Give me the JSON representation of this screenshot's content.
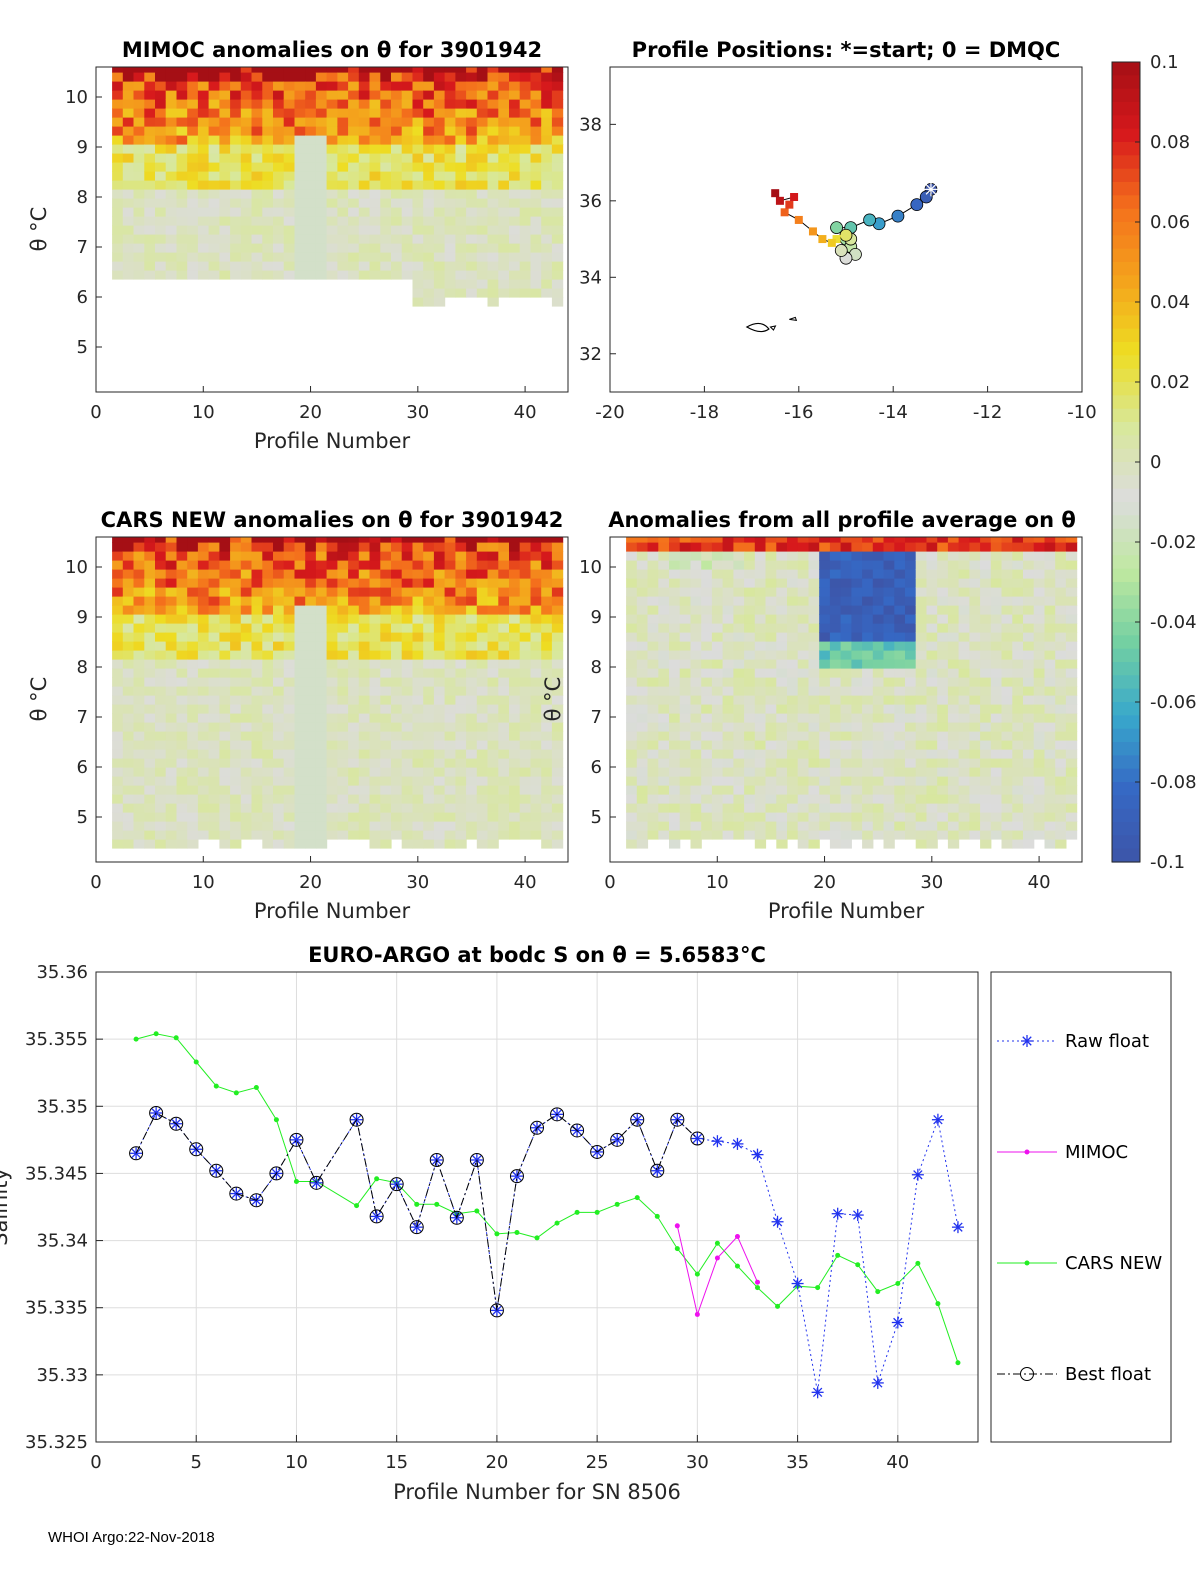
{
  "colors": {
    "raw_float": "#2233ee",
    "mimoc": "#ee11ee",
    "cars_new": "#22ee22",
    "best_float": "#000000",
    "axis": "#262626",
    "grid": "#dddddd"
  },
  "footer": "WHOI Argo:22-Nov-2018",
  "colorbar": {
    "range": [
      -0.1,
      0.1
    ],
    "ticks": [
      "0.1",
      "0.08",
      "0.06",
      "0.04",
      "0.02",
      "0",
      "-0.02",
      "-0.04",
      "-0.06",
      "-0.08",
      "-0.1"
    ],
    "ramp": [
      "#a50f15",
      "#d7191c",
      "#f4701c",
      "#f4a31c",
      "#eedd22",
      "#d8e89a",
      "#dcdcdc",
      "#bfe8a0",
      "#72cfa2",
      "#38a8cc",
      "#3668c4",
      "#3d55a8"
    ]
  },
  "chart_data": [
    {
      "type": "heatmap",
      "title": "MIMOC anomalies on θ  for 3901942",
      "xlabel": "Profile Number",
      "ylabel": "θ °C",
      "xlim": [
        0,
        44
      ],
      "ylim": [
        4.1,
        10.6
      ],
      "xticks": [
        "0",
        "10",
        "20",
        "30",
        "40"
      ],
      "yticks": [
        "5",
        "6",
        "7",
        "8",
        "9",
        "10"
      ],
      "profile_range": [
        2,
        43
      ],
      "note": "positive warm anomalies (up to 0.1) at theta > 9.5, near-zero below"
    },
    {
      "type": "scatter",
      "title": "Profile Positions: *=start; 0 = DMQC",
      "xlim": [
        -20,
        -10
      ],
      "ylim": [
        31,
        39.5
      ],
      "xticks": [
        "-20",
        "-18",
        "-16",
        "-14",
        "-12",
        "-10"
      ],
      "yticks": [
        "32",
        "34",
        "36",
        "38"
      ],
      "x": [
        -13.2,
        -13.3,
        -13.5,
        -13.9,
        -14.3,
        -14.5,
        -14.9,
        -15.2,
        -15.0,
        -14.9,
        -14.8,
        -15.0,
        -15.1,
        -14.9,
        -15.0,
        -15.2,
        -15.3,
        -15.5,
        -15.7,
        -16.0,
        -16.3,
        -16.2,
        -16.1,
        -16.4,
        -16.5
      ],
      "y": [
        36.3,
        36.1,
        35.9,
        35.6,
        35.4,
        35.5,
        35.3,
        35.3,
        35.0,
        34.8,
        34.6,
        34.5,
        34.7,
        35.0,
        35.1,
        35.0,
        34.9,
        35.0,
        35.2,
        35.5,
        35.7,
        35.9,
        36.1,
        36.0,
        36.2
      ],
      "land_note": "small island outline near (-17, 32.8)"
    },
    {
      "type": "heatmap",
      "title": "CARS NEW anomalies on θ for 3901942",
      "xlabel": "Profile Number",
      "ylabel": "θ °C",
      "xlim": [
        0,
        44
      ],
      "ylim": [
        4.1,
        10.6
      ],
      "xticks": [
        "0",
        "10",
        "20",
        "30",
        "40"
      ],
      "yticks": [
        "5",
        "6",
        "7",
        "8",
        "9",
        "10"
      ],
      "profile_range": [
        2,
        43
      ]
    },
    {
      "type": "heatmap",
      "title": "Anomalies from all profile average on θ",
      "xlabel": "Profile Number",
      "ylabel": "θ °C",
      "xlim": [
        0,
        44
      ],
      "ylim": [
        4.1,
        10.6
      ],
      "xticks": [
        "0",
        "10",
        "20",
        "30",
        "40"
      ],
      "yticks": [
        "5",
        "6",
        "7",
        "8",
        "9",
        "10"
      ],
      "profile_range": [
        2,
        43
      ],
      "note": "cold (blue) anomalies around profiles 20-28 at theta > 8"
    },
    {
      "type": "line",
      "title": "EURO-ARGO at bodc S on θ = 5.6583°C",
      "xlabel": "Profile Number for SN 8506",
      "ylabel": "Salinity",
      "xlim": [
        0,
        44
      ],
      "ylim": [
        35.325,
        35.36
      ],
      "xticks": [
        "0",
        "5",
        "10",
        "15",
        "20",
        "25",
        "30",
        "35",
        "40"
      ],
      "yticks": [
        "35.325",
        "35.33",
        "35.335",
        "35.34",
        "35.345",
        "35.35",
        "35.355",
        "35.36"
      ],
      "grid": true,
      "legend_position": "outside-right",
      "series": [
        {
          "name": "Raw float",
          "x": [
            2,
            3,
            4,
            5,
            6,
            7,
            8,
            9,
            10,
            11,
            13,
            14,
            15,
            16,
            17,
            18,
            19,
            20,
            21,
            22,
            23,
            24,
            25,
            26,
            27,
            28,
            29,
            30,
            31,
            32,
            33,
            34,
            35,
            36,
            37,
            38,
            39,
            40,
            41,
            42,
            43
          ],
          "values": [
            35.3465,
            35.3495,
            35.3487,
            35.3468,
            35.3452,
            35.3435,
            35.343,
            35.345,
            35.3475,
            35.3443,
            35.349,
            35.3418,
            35.3442,
            35.341,
            35.346,
            35.3417,
            35.346,
            35.3348,
            35.3448,
            35.3484,
            35.3494,
            35.3482,
            35.3466,
            35.3475,
            35.349,
            35.3452,
            35.349,
            35.3476,
            35.3474,
            35.3472,
            35.3464,
            35.3414,
            35.3368,
            35.3287,
            35.342,
            35.3419,
            35.3294,
            35.3339,
            35.3449,
            35.349,
            35.341
          ]
        },
        {
          "name": "MIMOC",
          "x": [
            29,
            30,
            31,
            32,
            33
          ],
          "values": [
            35.3411,
            35.3345,
            35.3387,
            35.3403,
            35.3369
          ]
        },
        {
          "name": "CARS NEW",
          "x": [
            2,
            3,
            4,
            5,
            6,
            7,
            8,
            9,
            10,
            11,
            13,
            14,
            15,
            16,
            17,
            18,
            19,
            20,
            21,
            22,
            23,
            24,
            25,
            26,
            27,
            28,
            29,
            30,
            31,
            32,
            33,
            34,
            35,
            36,
            37,
            38,
            39,
            40,
            41,
            42,
            43
          ],
          "values": [
            35.355,
            35.3554,
            35.3551,
            35.3533,
            35.3515,
            35.351,
            35.3514,
            35.349,
            35.3444,
            35.3444,
            35.3426,
            35.3446,
            35.3443,
            35.3427,
            35.3427,
            35.342,
            35.3422,
            35.3405,
            35.3406,
            35.3402,
            35.3413,
            35.3421,
            35.3421,
            35.3427,
            35.3432,
            35.3418,
            35.3394,
            35.3375,
            35.3398,
            35.3381,
            35.3365,
            35.3351,
            35.3366,
            35.3365,
            35.3389,
            35.3382,
            35.3362,
            35.3368,
            35.3383,
            35.3353,
            35.3309
          ]
        },
        {
          "name": "Best float",
          "x": [
            2,
            3,
            4,
            5,
            6,
            7,
            8,
            9,
            10,
            11,
            13,
            14,
            15,
            16,
            17,
            18,
            19,
            20,
            21,
            22,
            23,
            24,
            25,
            26,
            27,
            28,
            29,
            30
          ],
          "values": [
            35.3465,
            35.3495,
            35.3487,
            35.3468,
            35.3452,
            35.3435,
            35.343,
            35.345,
            35.3475,
            35.3443,
            35.349,
            35.3418,
            35.3442,
            35.341,
            35.346,
            35.3417,
            35.346,
            35.3348,
            35.3448,
            35.3484,
            35.3494,
            35.3482,
            35.3466,
            35.3475,
            35.349,
            35.3452,
            35.349,
            35.3476
          ]
        }
      ]
    }
  ]
}
